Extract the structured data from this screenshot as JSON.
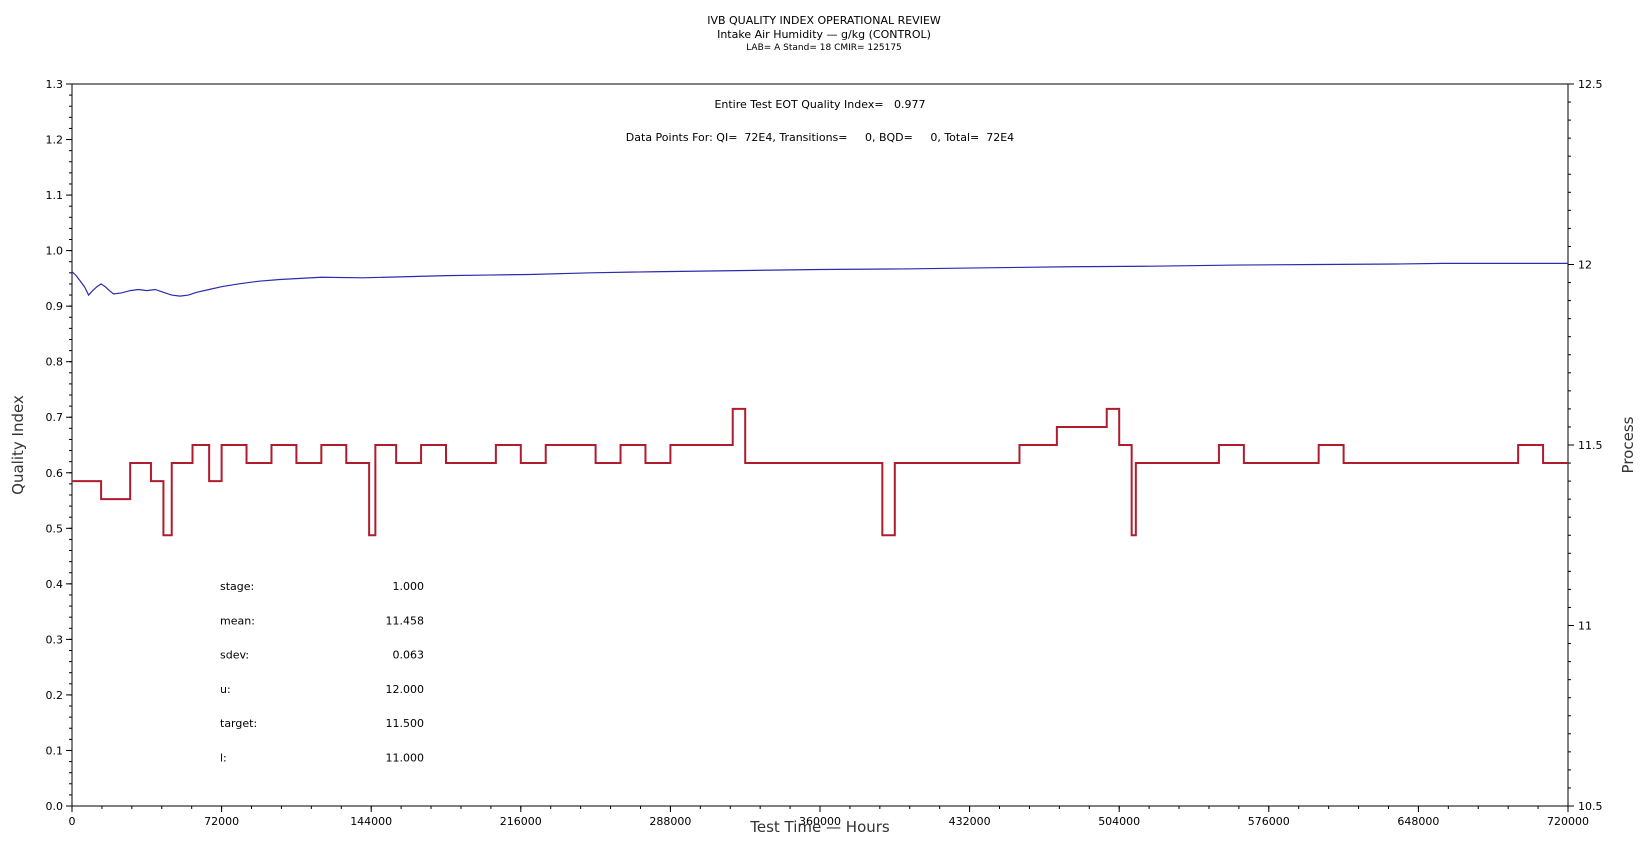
{
  "chart_data": {
    "type": "line",
    "title": "IVB QUALITY INDEX OPERATIONAL REVIEW",
    "subtitle": "Intake Air Humidity — g/kg (CONTROL)",
    "subtitle2": "LAB= A Stand= 18 CMIR= 125175",
    "xlabel": "Test Time — Hours",
    "ylabel_left": "Quality Index",
    "ylabel_right": "Process",
    "xlim": [
      0,
      720000
    ],
    "ylim_left": [
      0,
      1.3
    ],
    "ylim_right": [
      10.5,
      12.5
    ],
    "x_ticks": [
      "0",
      "72000",
      "144000",
      "216000",
      "288000",
      "360000",
      "432000",
      "504000",
      "576000",
      "648000",
      "720000"
    ],
    "y_left_ticks": [
      "0.0",
      "0.1",
      "0.2",
      "0.3",
      "0.4",
      "0.5",
      "0.6",
      "0.7",
      "0.8",
      "0.9",
      "1.0",
      "1.1",
      "1.2",
      "1.3"
    ],
    "y_right_ticks": [
      "10.5",
      "11",
      "11.5",
      "12",
      "12.5"
    ],
    "annotation_eot": "Entire Test EOT Quality Index=   0.977",
    "annotation_points": "Data Points For: QI=  72E4, Transitions=     0, BQD=     0, Total=  72E4",
    "stats": [
      {
        "label": "stage:",
        "value": "1.000"
      },
      {
        "label": "mean:",
        "value": "11.458"
      },
      {
        "label": "sdev:",
        "value": "0.063"
      },
      {
        "label": "u:",
        "value": "12.000"
      },
      {
        "label": "target:",
        "value": "11.500"
      },
      {
        "label": "l:",
        "value": "11.000"
      }
    ],
    "series": [
      {
        "axis": "left",
        "color": "#2b2bb0",
        "x": [
          0,
          2000,
          4000,
          6000,
          8000,
          10000,
          12000,
          14000,
          16000,
          18000,
          20000,
          24000,
          28000,
          32000,
          36000,
          40000,
          44000,
          48000,
          52000,
          56000,
          60000,
          66000,
          72000,
          80000,
          90000,
          100000,
          110000,
          120000,
          140000,
          160000,
          180000,
          200000,
          220000,
          250000,
          280000,
          320000,
          360000,
          400000,
          440000,
          480000,
          520000,
          560000,
          600000,
          640000,
          660000,
          700000,
          720000
        ],
        "y": [
          0.962,
          0.955,
          0.945,
          0.935,
          0.92,
          0.928,
          0.935,
          0.94,
          0.935,
          0.928,
          0.922,
          0.924,
          0.928,
          0.93,
          0.928,
          0.93,
          0.925,
          0.92,
          0.918,
          0.92,
          0.925,
          0.93,
          0.935,
          0.94,
          0.945,
          0.948,
          0.95,
          0.952,
          0.951,
          0.953,
          0.955,
          0.956,
          0.957,
          0.96,
          0.962,
          0.964,
          0.966,
          0.967,
          0.969,
          0.971,
          0.972,
          0.974,
          0.975,
          0.976,
          0.977,
          0.977,
          0.977
        ]
      },
      {
        "axis": "right",
        "color": "#b01c2e",
        "x": [
          0,
          14000,
          28000,
          38000,
          44000,
          48000,
          58000,
          66000,
          72000,
          84000,
          96000,
          108000,
          120000,
          132000,
          140000,
          143000,
          146000,
          156000,
          168000,
          180000,
          192000,
          204000,
          216000,
          228000,
          240000,
          252000,
          264000,
          276000,
          288000,
          300000,
          312000,
          318000,
          324000,
          336000,
          348000,
          360000,
          372000,
          384000,
          390000,
          396000,
          408000,
          420000,
          432000,
          444000,
          456000,
          468000,
          474000,
          480000,
          492000,
          498000,
          504000,
          510000,
          512000,
          516000,
          528000,
          540000,
          552000,
          564000,
          576000,
          588000,
          600000,
          612000,
          624000,
          636000,
          648000,
          660000,
          672000,
          684000,
          696000,
          708000,
          720000
        ],
        "y": [
          11.4,
          11.35,
          11.45,
          11.4,
          11.25,
          11.45,
          11.5,
          11.4,
          11.5,
          11.45,
          11.5,
          11.45,
          11.5,
          11.45,
          11.45,
          11.25,
          11.5,
          11.45,
          11.5,
          11.45,
          11.45,
          11.5,
          11.45,
          11.5,
          11.5,
          11.45,
          11.5,
          11.45,
          11.5,
          11.5,
          11.5,
          11.6,
          11.45,
          11.45,
          11.45,
          11.45,
          11.45,
          11.45,
          11.25,
          11.45,
          11.45,
          11.45,
          11.45,
          11.45,
          11.5,
          11.5,
          11.55,
          11.55,
          11.55,
          11.6,
          11.5,
          11.25,
          11.45,
          11.45,
          11.45,
          11.45,
          11.5,
          11.45,
          11.45,
          11.45,
          11.5,
          11.45,
          11.45,
          11.45,
          11.45,
          11.45,
          11.45,
          11.45,
          11.5,
          11.45,
          11.45
        ]
      }
    ]
  }
}
